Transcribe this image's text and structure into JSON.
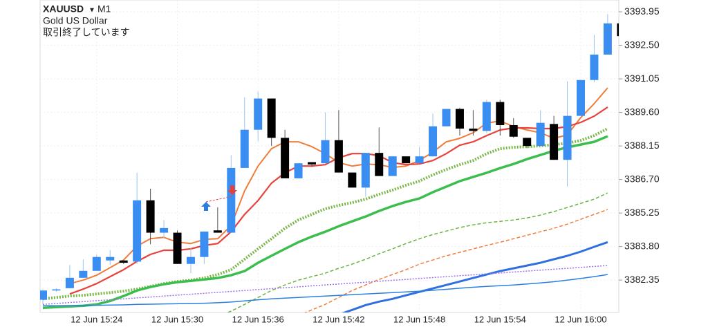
{
  "chart_data": {
    "type": "candlestick",
    "title": "XAUUSD",
    "timeframe": "M1",
    "subtitle": "Gold US Dollar",
    "annotation": "取引終了しています",
    "categories": [
      null,
      null,
      null,
      null,
      "12 Jun 15:24",
      null,
      null,
      null,
      null,
      null,
      "12 Jun 15:30",
      null,
      null,
      null,
      null,
      null,
      "12 Jun 15:36",
      null,
      null,
      null,
      null,
      null,
      "12 Jun 15:42",
      null,
      null,
      null,
      null,
      null,
      "12 Jun 15:48",
      null,
      null,
      null,
      null,
      null,
      "12 Jun 15:54",
      null,
      null,
      null,
      null,
      null,
      "12 Jun 16:00",
      null,
      null,
      null
    ],
    "open": [
      3381.5,
      3381.9,
      3382.0,
      3382.45,
      3382.75,
      3383.2,
      3383.2,
      3383.15,
      3385.8,
      3384.4,
      3384.4,
      3383.05,
      3383.35,
      3384.5,
      3384.4,
      3387.2,
      3388.85,
      3390.2,
      3388.5,
      3386.75,
      3387.45,
      3387.4,
      3388.4,
      3387.0,
      3386.35,
      3387.85,
      3386.85,
      3387.7,
      3387.4,
      3387.7,
      3389.0,
      3389.75,
      3388.9,
      3388.8,
      3390.05,
      3389.05,
      3388.5,
      3388.15,
      3389.1,
      3387.55,
      3389.45,
      3391.0,
      3392.1,
      3393.45
    ],
    "high": [
      3381.95,
      3382.0,
      3383.0,
      3383.25,
      3383.45,
      3383.65,
      3383.2,
      3387.0,
      3386.3,
      3384.95,
      3384.5,
      3383.75,
      3384.45,
      3385.5,
      3387.75,
      3390.25,
      3390.5,
      3390.2,
      3388.85,
      3387.4,
      3387.45,
      3389.6,
      3389.7,
      3387.0,
      3387.85,
      3388.95,
      3387.7,
      3387.7,
      3388.1,
      3389.55,
      3389.75,
      3389.8,
      3389.7,
      3390.15,
      3390.15,
      3389.35,
      3388.5,
      3389.7,
      3389.45,
      3390.95,
      3391.0,
      3392.95,
      3393.85,
      3393.45
    ],
    "low": [
      3381.3,
      3381.85,
      3382.0,
      3382.45,
      3382.75,
      3383.0,
      3383.05,
      3383.05,
      3383.9,
      3384.15,
      3383.05,
      3382.65,
      3383.05,
      3384.4,
      3384.4,
      3387.2,
      3388.35,
      3388.15,
      3386.75,
      3386.75,
      3387.25,
      3387.4,
      3387.0,
      3386.35,
      3385.95,
      3386.85,
      3386.85,
      3387.4,
      3387.4,
      3387.7,
      3389.0,
      3388.6,
      3388.6,
      3388.7,
      3388.6,
      3388.5,
      3388.05,
      3388.15,
      3387.55,
      3386.4,
      3389.45,
      3390.9,
      3392.1,
      3392.9
    ],
    "close": [
      3381.9,
      3381.95,
      3382.45,
      3382.75,
      3383.35,
      3383.35,
      3383.1,
      3385.8,
      3384.4,
      3384.6,
      3383.05,
      3383.35,
      3384.45,
      3384.4,
      3387.2,
      3388.85,
      3390.2,
      3388.5,
      3386.75,
      3387.4,
      3387.35,
      3388.4,
      3387.0,
      3386.35,
      3387.85,
      3386.85,
      3387.7,
      3387.4,
      3387.7,
      3389.0,
      3389.75,
      3388.9,
      3388.8,
      3390.05,
      3389.05,
      3388.55,
      3388.15,
      3389.15,
      3387.55,
      3389.45,
      3391.0,
      3392.1,
      3393.45,
      3392.9
    ],
    "up_color": "#3a8ef2",
    "down_color": "#000000",
    "lines": [
      {
        "color": "#ef7d3a",
        "style": "solid",
        "width": 2,
        "values": [
          null,
          null,
          3382.2,
          3382.35,
          3382.56,
          3382.89,
          3383.22,
          3383.82,
          3384.14,
          3384.2,
          3383.99,
          3383.93,
          3384.11,
          3384.14,
          3384.71,
          3386.21,
          3387.28,
          3388.03,
          3388.33,
          3388.33,
          3388.12,
          3387.82,
          3387.43,
          3387.28,
          3387.37,
          3387.34,
          3387.22,
          3387.28,
          3387.52,
          3387.88,
          3388.33,
          3388.48,
          3388.72,
          3389.14,
          3389.23,
          3388.99,
          3388.84,
          3388.72,
          3388.48,
          3388.63,
          3389.38,
          3389.98,
          3390.66,
          null
        ]
      },
      {
        "color": "#e8413a",
        "style": "solid",
        "width": 2.2,
        "values": [
          null,
          null,
          3381.75,
          3381.96,
          3382.2,
          3382.5,
          3382.8,
          3383.16,
          3383.46,
          3383.64,
          3383.64,
          3383.7,
          3383.85,
          3383.93,
          3384.44,
          3385.19,
          3385.79,
          3386.54,
          3386.99,
          3387.28,
          3387.28,
          3387.34,
          3387.64,
          3387.82,
          3387.82,
          3387.73,
          3387.43,
          3387.34,
          3387.37,
          3387.52,
          3387.82,
          3388.18,
          3388.33,
          3388.6,
          3388.84,
          3388.93,
          3388.93,
          3388.9,
          3388.9,
          3388.99,
          3389.17,
          3389.44,
          3389.83,
          null
        ]
      },
      {
        "color": "#7ab648",
        "style": "dotted",
        "width": 4,
        "values": [
          3381.54,
          3381.6,
          3381.66,
          3381.69,
          3381.75,
          3381.81,
          3381.87,
          3381.96,
          3382.08,
          3382.2,
          3382.29,
          3382.35,
          3382.44,
          3382.59,
          3382.8,
          3383.25,
          3383.7,
          3384.14,
          3384.59,
          3384.95,
          3385.19,
          3385.43,
          3385.58,
          3385.7,
          3385.85,
          3386.06,
          3386.24,
          3386.45,
          3386.63,
          3386.9,
          3387.13,
          3387.34,
          3387.52,
          3387.82,
          3388.03,
          3388.09,
          3388.12,
          3388.15,
          3388.21,
          3388.27,
          3388.39,
          3388.6,
          3388.9,
          null
        ]
      },
      {
        "color": "#3cbe4e",
        "style": "solid",
        "width": 3.5,
        "values": [
          3381.15,
          3381.18,
          3381.21,
          3381.24,
          3381.3,
          3381.45,
          3381.66,
          3381.9,
          3382.05,
          3382.17,
          3382.26,
          3382.32,
          3382.38,
          3382.44,
          3382.56,
          3382.74,
          3383.1,
          3383.4,
          3383.7,
          3383.99,
          3384.23,
          3384.44,
          3384.68,
          3384.89,
          3385.1,
          3385.34,
          3385.55,
          3385.73,
          3385.88,
          3386.15,
          3386.39,
          3386.63,
          3386.81,
          3386.99,
          3387.19,
          3387.37,
          3387.58,
          3387.76,
          3387.94,
          3388.09,
          3388.21,
          3388.33,
          3388.57,
          null
        ]
      },
      {
        "color": "#6ab443",
        "style": "dashed",
        "width": 1.5,
        "values": [
          null,
          null,
          null,
          null,
          null,
          null,
          null,
          null,
          null,
          null,
          null,
          null,
          null,
          3380.77,
          3381.01,
          3381.3,
          3381.6,
          3381.9,
          3382.14,
          3382.35,
          3382.5,
          3382.65,
          3382.86,
          3383.04,
          3383.25,
          3383.49,
          3383.7,
          3383.93,
          3384.14,
          3384.32,
          3384.47,
          3384.62,
          3384.74,
          3384.83,
          3384.89,
          3384.95,
          3385.04,
          3385.16,
          3385.31,
          3385.49,
          3385.67,
          3385.85,
          3386.12,
          null
        ]
      },
      {
        "color": "#ef7d3a",
        "style": "dashed",
        "width": 1.5,
        "values": [
          null,
          null,
          null,
          null,
          null,
          null,
          null,
          null,
          null,
          null,
          null,
          null,
          null,
          null,
          null,
          null,
          null,
          null,
          null,
          3380.83,
          3381.06,
          3381.3,
          3381.6,
          3381.9,
          3382.14,
          3382.38,
          3382.59,
          3382.8,
          3383.04,
          3383.22,
          3383.4,
          3383.55,
          3383.7,
          3383.85,
          3383.99,
          3384.14,
          3384.29,
          3384.44,
          3384.59,
          3384.77,
          3384.98,
          3385.19,
          3385.4,
          null
        ]
      },
      {
        "color": "#2f6fe0",
        "style": "solid",
        "width": 3,
        "values": [
          null,
          null,
          null,
          null,
          null,
          null,
          null,
          null,
          null,
          null,
          null,
          null,
          null,
          null,
          null,
          null,
          null,
          null,
          null,
          null,
          null,
          null,
          3380.86,
          3381.06,
          3381.27,
          3381.42,
          3381.54,
          3381.69,
          3381.84,
          3381.99,
          3382.14,
          3382.29,
          3382.44,
          3382.59,
          3382.74,
          3382.86,
          3382.98,
          3383.1,
          3383.25,
          3383.4,
          3383.58,
          3383.79,
          3383.99,
          null
        ]
      },
      {
        "color": "#9b6ef0",
        "style": "dotted",
        "width": 1.5,
        "values": [
          3381.3,
          3381.34,
          3381.38,
          3381.42,
          3381.46,
          3381.5,
          3381.54,
          3381.58,
          3381.62,
          3381.66,
          3381.7,
          3381.74,
          3381.78,
          3381.82,
          3381.86,
          3381.9,
          3381.94,
          3381.98,
          3382.02,
          3382.06,
          3382.1,
          3382.14,
          3382.18,
          3382.22,
          3382.26,
          3382.3,
          3382.34,
          3382.38,
          3382.42,
          3382.46,
          3382.5,
          3382.54,
          3382.58,
          3382.62,
          3382.66,
          3382.7,
          3382.74,
          3382.78,
          3382.82,
          3382.86,
          3382.9,
          3382.94,
          3382.98,
          null
        ]
      },
      {
        "color": "#2a7ee0",
        "style": "solid",
        "width": 1.5,
        "values": [
          3381.24,
          3381.24,
          3381.25,
          3381.25,
          3381.26,
          3381.27,
          3381.28,
          3381.3,
          3381.31,
          3381.32,
          3381.33,
          3381.34,
          3381.35,
          3381.37,
          3381.4,
          3381.45,
          3381.5,
          3381.54,
          3381.57,
          3381.6,
          3381.63,
          3381.66,
          3381.69,
          3381.72,
          3381.75,
          3381.78,
          3381.81,
          3381.84,
          3381.87,
          3381.91,
          3381.95,
          3382.0,
          3382.04,
          3382.08,
          3382.11,
          3382.14,
          3382.18,
          3382.23,
          3382.28,
          3382.35,
          3382.42,
          3382.5,
          3382.59,
          null
        ]
      }
    ],
    "ylim": [
      3380.95,
      3394.46
    ],
    "yticks": [
      3393.95,
      {
        "value": 3392.5,
        "label": "3392.50"
      },
      3391.05,
      {
        "value": 3389.6,
        "label": "3389.60"
      },
      3388.15,
      {
        "value": 3386.7,
        "label": "3386.70"
      },
      3385.25,
      {
        "value": 3383.8,
        "label": "3383.80"
      },
      3382.35
    ],
    "grid": true
  }
}
